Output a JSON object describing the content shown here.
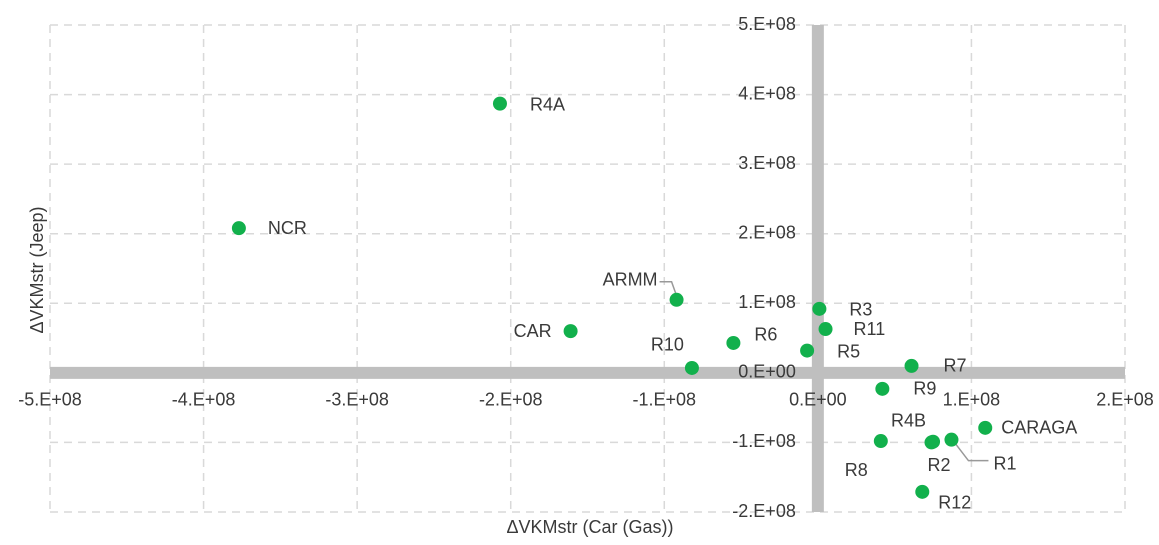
{
  "chart_data": {
    "type": "scatter",
    "x_label": "ΔVKMstr (Car (Gas))",
    "y_label": "ΔVKMstr (Jeep)",
    "color": "#12b04c",
    "grid": true,
    "xlim": [
      -500000000,
      200000000
    ],
    "ylim": [
      -200000000,
      500000000
    ],
    "xticks": [
      {
        "value": -500000000,
        "label": "-5.E+08"
      },
      {
        "value": -400000000,
        "label": "-4.E+08"
      },
      {
        "value": -300000000,
        "label": "-3.E+08"
      },
      {
        "value": -200000000,
        "label": "-2.E+08"
      },
      {
        "value": -100000000,
        "label": "-1.E+08"
      },
      {
        "value": 0,
        "label": "0.E+00"
      },
      {
        "value": 100000000,
        "label": "1.E+08"
      },
      {
        "value": 200000000,
        "label": "2.E+08"
      }
    ],
    "yticks": [
      {
        "value": -200000000,
        "label": "-2.E+08"
      },
      {
        "value": -100000000,
        "label": "-1.E+08"
      },
      {
        "value": 0,
        "label": "0.E+00"
      },
      {
        "value": 100000000,
        "label": "1.E+08"
      },
      {
        "value": 200000000,
        "label": "2.E+08"
      },
      {
        "value": 300000000,
        "label": "3.E+08"
      },
      {
        "value": 400000000,
        "label": "4.E+08"
      },
      {
        "value": 500000000,
        "label": "5.E+08"
      }
    ],
    "labels": [
      "R4A",
      "NCR",
      "ARMM",
      "CAR",
      "R10",
      "R6",
      "R3",
      "R11",
      "R5",
      "R7",
      "R9",
      "R8",
      "R4B",
      "R2",
      "R1",
      "CARAGA",
      "R12"
    ],
    "x": [
      -207000000,
      -377000000,
      -92000000,
      -161000000,
      -82000000,
      -55000000,
      1000000,
      5000000,
      -7000000,
      61000000,
      42000000,
      41000000,
      75000000,
      74000000,
      87000000,
      109000000,
      68000000
    ],
    "y": [
      387000000,
      208000000,
      105000000,
      60000000,
      7000000,
      43000000,
      92000000,
      63000000,
      32000000,
      10000000,
      -23000000,
      -98000000,
      -99000000,
      -100000000,
      -96000000,
      -79000000,
      -171000000
    ]
  }
}
